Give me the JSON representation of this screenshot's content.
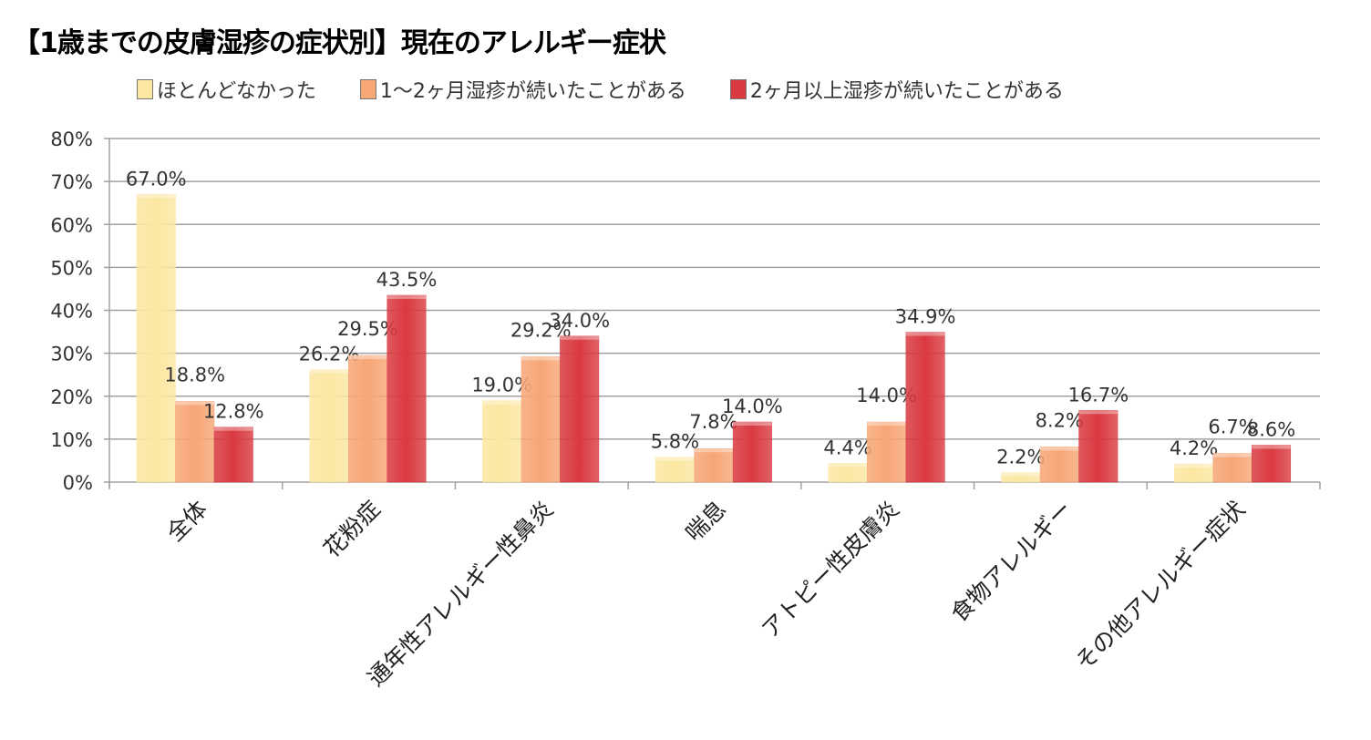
{
  "chart_data": {
    "type": "bar",
    "title": "【1歳までの皮膚湿疹の症状別】現在のアレルギー症状",
    "xlabel": "",
    "ylabel": "",
    "ylim": [
      0,
      80
    ],
    "yticks": [
      "0%",
      "10%",
      "20%",
      "30%",
      "40%",
      "50%",
      "60%",
      "70%",
      "80%"
    ],
    "grid": true,
    "legend_position": "top",
    "categories": [
      "全体",
      "花粉症",
      "通年性アレルギー性鼻炎",
      "喘息",
      "アトピー性皮膚炎",
      "食物アレルギー",
      "その他アレルギー症状"
    ],
    "series": [
      {
        "name": "ほとんどなかった",
        "color": "#fbe7a1",
        "values": [
          67.0,
          26.2,
          19.0,
          5.8,
          4.4,
          2.2,
          4.2
        ],
        "labels": [
          "67.0%",
          "26.2%",
          "19.0%",
          "5.8%",
          "4.4%",
          "2.2%",
          "4.2%"
        ]
      },
      {
        "name": "1〜2ヶ月湿疹が続いたことがある",
        "color": "#f7a676",
        "values": [
          18.8,
          29.5,
          29.2,
          7.8,
          14.0,
          8.2,
          6.7
        ],
        "labels": [
          "18.8%",
          "29.5%",
          "29.2%",
          "7.8%",
          "14.0%",
          "8.2%",
          "6.7%"
        ]
      },
      {
        "name": "2ヶ月以上湿疹が続いたことがある",
        "color": "#d93a40",
        "values": [
          12.8,
          43.5,
          34.0,
          14.0,
          34.9,
          16.7,
          8.6
        ],
        "labels": [
          "12.8%",
          "43.5%",
          "34.0%",
          "14.0%",
          "34.9%",
          "16.7%",
          "8.6%"
        ]
      }
    ]
  }
}
